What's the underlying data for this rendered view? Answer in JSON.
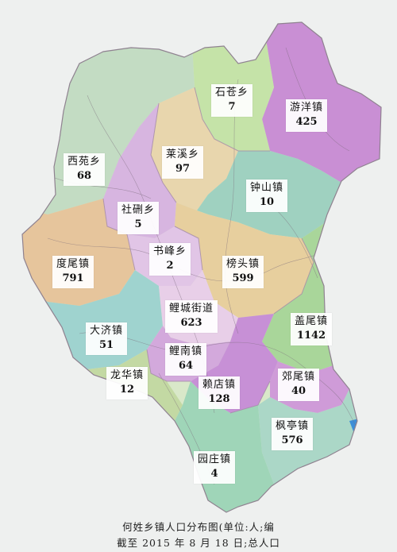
{
  "map": {
    "regions": [
      {
        "id": "shicang",
        "name": "石苍乡",
        "value": "7",
        "color": "#c5e3a8"
      },
      {
        "id": "youyang",
        "name": "游洋镇",
        "value": "425",
        "color": "#c98fd4"
      },
      {
        "id": "xiyuan",
        "name": "西苑乡",
        "value": "68",
        "color": "#c3dcc3"
      },
      {
        "id": "laixi",
        "name": "莱溪乡",
        "value": "97",
        "color": "#e8d6ad"
      },
      {
        "id": "zhongshan",
        "name": "钟山镇",
        "value": "10",
        "color": "#9fd1c0"
      },
      {
        "id": "shexun",
        "name": "社硎乡",
        "value": "5",
        "color": "#d7b5e0"
      },
      {
        "id": "shufeng",
        "name": "书峰乡",
        "value": "2",
        "color": "#e1c5e6"
      },
      {
        "id": "duwei",
        "name": "度尾镇",
        "value": "791",
        "color": "#e6c59c"
      },
      {
        "id": "bangtou",
        "name": "榜头镇",
        "value": "599",
        "color": "#e7cf9e"
      },
      {
        "id": "lichengjd",
        "name": "鲤城街道",
        "value": "623",
        "color": "#e8cfe8"
      },
      {
        "id": "gaiwei",
        "name": "盖尾镇",
        "value": "1142",
        "color": "#a9d69a"
      },
      {
        "id": "daji",
        "name": "大济镇",
        "value": "51",
        "color": "#9fd3cf"
      },
      {
        "id": "linan",
        "name": "鲤南镇",
        "value": "64",
        "color": "#d3a9dc"
      },
      {
        "id": "longhua",
        "name": "龙华镇",
        "value": "12",
        "color": "#c3d9a3"
      },
      {
        "id": "laidian",
        "name": "赖店镇",
        "value": "128",
        "color": "#c790d6"
      },
      {
        "id": "jiaowei",
        "name": "郊尾镇",
        "value": "40",
        "color": "#cf9bd8"
      },
      {
        "id": "fengting",
        "name": "枫亭镇",
        "value": "576",
        "color": "#abd7c7"
      },
      {
        "id": "yuanzhuang",
        "name": "园庄镇",
        "value": "4",
        "color": "#9fd5b8"
      }
    ],
    "sea_color": "#3d8fd8"
  },
  "caption": {
    "line1": "何姓乡镇人口分布图(单位:人;编",
    "line2": "截至 2015 年 8 月 18 日;总人口"
  }
}
